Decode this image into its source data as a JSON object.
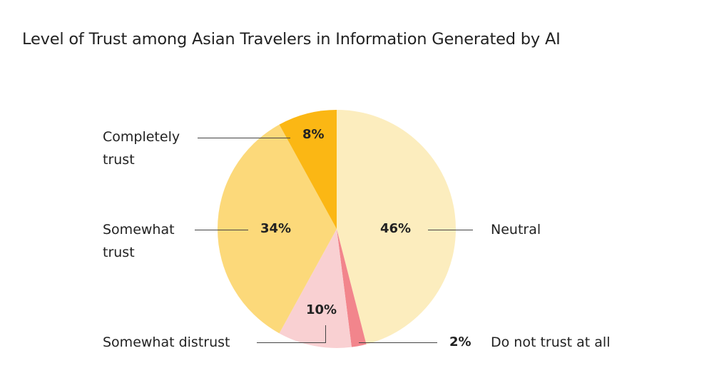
{
  "chart_data": {
    "type": "pie",
    "title": "Level of Trust among Asian Travelers in Information Generated by AI",
    "start_angle": "top",
    "direction": "clockwise",
    "slices": [
      {
        "label": "Neutral",
        "value": 46,
        "value_label": "46%",
        "color": "#FCEDBE"
      },
      {
        "label": "Do not trust at all",
        "value": 2,
        "value_label": "2%",
        "color": "#F2858C"
      },
      {
        "label": "Somewhat distrust",
        "value": 10,
        "value_label": "10%",
        "color": "#F9D0D2"
      },
      {
        "label": "Somewhat trust",
        "value": 34,
        "value_label": "34%",
        "color": "#FCD97A"
      },
      {
        "label": "Completely trust",
        "value": 8,
        "value_label": "8%",
        "color": "#FBB714"
      }
    ]
  }
}
